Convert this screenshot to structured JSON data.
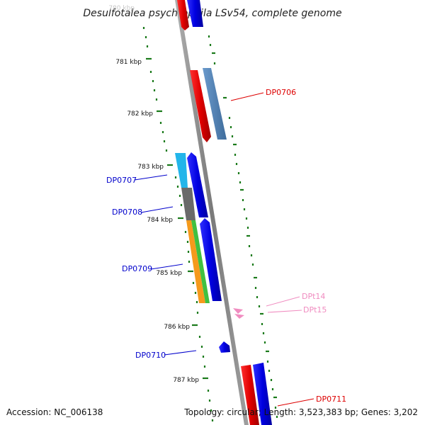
{
  "title": "Desulfotalea psychrophila LSv54, complete genome",
  "footer": {
    "accession": "Accession: NC_006138",
    "summary": "Topology: circular; Length: 3,523,383 bp; Genes: 3,202"
  },
  "scale": {
    "faded_label": "780 kbp",
    "ticks": [
      "781 kbp",
      "782 kbp",
      "783 kbp",
      "784 kbp",
      "785 kbp",
      "786 kbp",
      "787 kbp"
    ]
  },
  "gene_labels": {
    "dp0706": "DP0706",
    "dp0707": "DP0707",
    "dp0708": "DP0708",
    "dp0709": "DP0709",
    "dp0710": "DP0710",
    "dp0711": "DP0711",
    "dpt14": "DPt14",
    "dpt15": "DPt15"
  },
  "colors": {
    "backbone": "#8c8c8c",
    "tick": "#1a7a1a",
    "red_gene": "#e60000",
    "blue_gene": "#0000e6",
    "steel_gene": "#4f80b5",
    "cyan_gene": "#22b5ea",
    "gray_gene": "#666666",
    "orange_gene": "#f59a1c",
    "green_gene": "#40c040",
    "trna": "#f08cc0",
    "label_red": "#dd0000",
    "label_blue": "#0000cc",
    "label_pink": "#f08cc0"
  }
}
